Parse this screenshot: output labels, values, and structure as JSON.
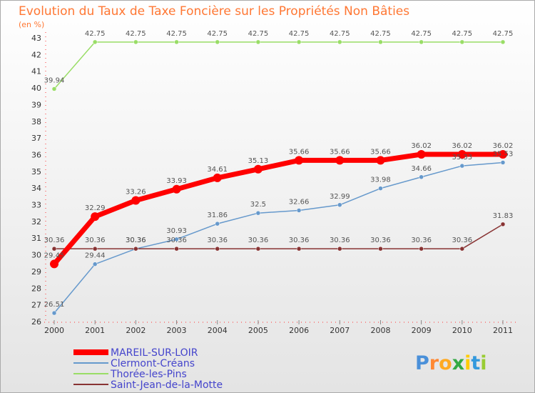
{
  "chart_data": {
    "type": "line",
    "title": "Evolution du Taux de Taxe Foncière sur les Propriétés Non Bâties",
    "unit_label": "(en %)",
    "x": [
      "2000",
      "2001",
      "2002",
      "2003",
      "2004",
      "2005",
      "2006",
      "2007",
      "2008",
      "2009",
      "2010",
      "2011"
    ],
    "ylim": [
      26,
      43
    ],
    "yticks": [
      "26",
      "27",
      "28",
      "29",
      "30",
      "31",
      "32",
      "33",
      "34",
      "35",
      "36",
      "37",
      "38",
      "39",
      "40",
      "41",
      "42",
      "43"
    ],
    "grid": false,
    "legend_position": "bottom-left",
    "series": [
      {
        "name": "MAREIL-SUR-LOIR",
        "color": "#ff0000",
        "emphasis": true,
        "values": [
          29.45,
          32.29,
          33.26,
          33.93,
          34.61,
          35.13,
          35.66,
          35.66,
          35.66,
          36.02,
          36.02,
          36.02
        ],
        "labels": [
          "29.45",
          "32.29",
          "33.26",
          "33.93",
          "34.61",
          "35.13",
          "35.66",
          "35.66",
          "35.66",
          "36.02",
          "36.02",
          "36.02"
        ]
      },
      {
        "name": "Clermont-Créans",
        "color": "#6699cc",
        "values": [
          26.51,
          29.44,
          30.36,
          30.93,
          31.86,
          32.5,
          32.66,
          32.99,
          33.98,
          34.66,
          35.33,
          35.53
        ],
        "labels": [
          "26.51",
          "29.44",
          "30.36",
          "30.93",
          "31.86",
          "32.5",
          "32.66",
          "32.99",
          "33.98",
          "34.66",
          "35.33",
          "35.53"
        ]
      },
      {
        "name": "Thorée-les-Pins",
        "color": "#99dd66",
        "values": [
          39.94,
          42.75,
          42.75,
          42.75,
          42.75,
          42.75,
          42.75,
          42.75,
          42.75,
          42.75,
          42.75,
          42.75
        ],
        "labels": [
          "39.94",
          "42.75",
          "42.75",
          "42.75",
          "42.75",
          "42.75",
          "42.75",
          "42.75",
          "42.75",
          "42.75",
          "42.75",
          "42.75"
        ]
      },
      {
        "name": "Saint-Jean-de-la-Motte",
        "color": "#883333",
        "values": [
          30.36,
          30.36,
          30.36,
          30.36,
          30.36,
          30.36,
          30.36,
          30.36,
          30.36,
          30.36,
          30.36,
          31.83
        ],
        "labels": [
          "30.36",
          "30.36",
          "30.36",
          "30.36",
          "30.36",
          "30.36",
          "30.36",
          "30.36",
          "30.36",
          "30.36",
          "30.36",
          "31.83"
        ]
      }
    ]
  },
  "brand": {
    "letters": [
      "P",
      "r",
      "o",
      "x",
      "i",
      "t",
      "i"
    ],
    "colors": [
      "#4a90d9",
      "#ff8833",
      "#ffaa22",
      "#33aa44",
      "#ffcc00",
      "#3399dd",
      "#99cc33"
    ]
  }
}
